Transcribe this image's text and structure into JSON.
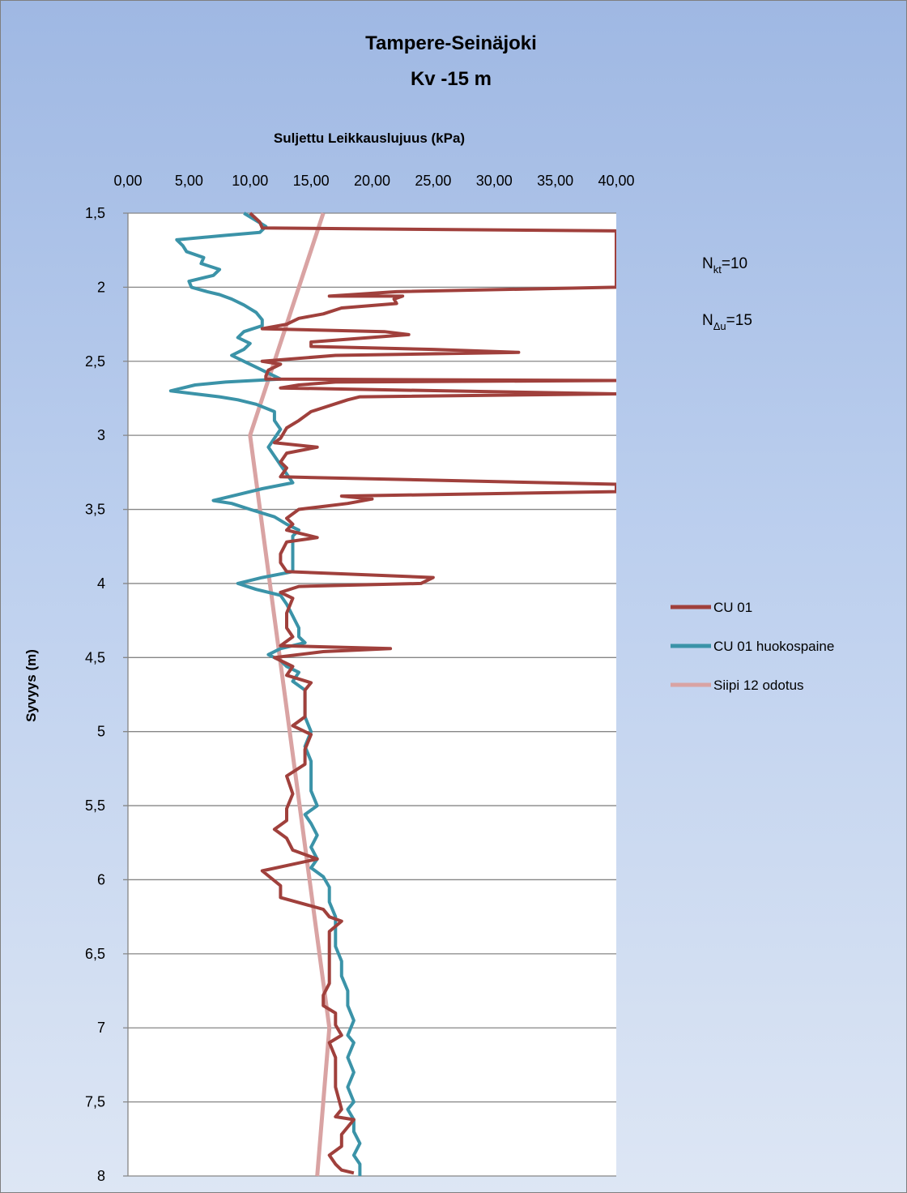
{
  "chart_data": {
    "type": "line",
    "title_lines": [
      "Tampere-Seinäjoki",
      "Kv -15 m"
    ],
    "xlabel": "Suljettu Leikkauslujuus (kPa)",
    "ylabel": "Syvyys (m)",
    "xlim": [
      0,
      40
    ],
    "ylim": [
      1.5,
      8
    ],
    "y_inverted": true,
    "x_axis_position": "top",
    "grid": "horizontal",
    "legend_position": "right",
    "x_ticks": [
      0,
      5,
      10,
      15,
      20,
      25,
      30,
      35,
      40
    ],
    "x_tick_labels": [
      "0,00",
      "5,00",
      "10,00",
      "15,00",
      "20,00",
      "25,00",
      "30,00",
      "35,00",
      "40,00"
    ],
    "y_ticks": [
      1.5,
      2,
      2.5,
      3,
      3.5,
      4,
      4.5,
      5,
      5.5,
      6,
      6.5,
      7,
      7.5,
      8
    ],
    "y_tick_labels": [
      "1,5",
      "2",
      "2,5",
      "3",
      "3,5",
      "4",
      "4,5",
      "5",
      "5,5",
      "6",
      "6,5",
      "7",
      "7,5",
      "8"
    ],
    "annotations": [
      {
        "sym": "N",
        "sub": "kt",
        "rest": "=10"
      },
      {
        "sym": "N",
        "sub": "Δu",
        "rest": "=15"
      }
    ],
    "series": [
      {
        "name": "CU  01",
        "color": "#a0403c",
        "points": [
          [
            10.0,
            1.5
          ],
          [
            10.8,
            1.56
          ],
          [
            11.0,
            1.6
          ],
          [
            40.0,
            1.62
          ],
          [
            40.0,
            2.0
          ],
          [
            22.0,
            2.03
          ],
          [
            16.5,
            2.06
          ],
          [
            22.5,
            2.06
          ],
          [
            21.8,
            2.08
          ],
          [
            22.0,
            2.11
          ],
          [
            17.5,
            2.14
          ],
          [
            16.0,
            2.18
          ],
          [
            14.0,
            2.21
          ],
          [
            13.0,
            2.25
          ],
          [
            11.0,
            2.28
          ],
          [
            21.0,
            2.3
          ],
          [
            23.0,
            2.32
          ],
          [
            15.0,
            2.37
          ],
          [
            15.0,
            2.4
          ],
          [
            25.0,
            2.42
          ],
          [
            32.0,
            2.44
          ],
          [
            17.0,
            2.46
          ],
          [
            11.0,
            2.5
          ],
          [
            12.5,
            2.52
          ],
          [
            11.5,
            2.56
          ],
          [
            11.3,
            2.6
          ],
          [
            11.3,
            2.62
          ],
          [
            40.0,
            2.63
          ],
          [
            17.0,
            2.64
          ],
          [
            14.0,
            2.66
          ],
          [
            12.5,
            2.68
          ],
          [
            40.0,
            2.72
          ],
          [
            19.0,
            2.74
          ],
          [
            18.0,
            2.76
          ],
          [
            15.0,
            2.84
          ],
          [
            14.0,
            2.9
          ],
          [
            13.0,
            2.95
          ],
          [
            12.5,
            3.02
          ],
          [
            12.0,
            3.05
          ],
          [
            15.5,
            3.08
          ],
          [
            13.0,
            3.12
          ],
          [
            12.5,
            3.18
          ],
          [
            13.0,
            3.22
          ],
          [
            12.5,
            3.28
          ],
          [
            40.0,
            3.33
          ],
          [
            40.0,
            3.38
          ],
          [
            17.5,
            3.41
          ],
          [
            20.0,
            3.43
          ],
          [
            18.0,
            3.46
          ],
          [
            16.0,
            3.48
          ],
          [
            14.0,
            3.5
          ],
          [
            13.0,
            3.56
          ],
          [
            13.5,
            3.6
          ],
          [
            13.0,
            3.64
          ],
          [
            15.5,
            3.69
          ],
          [
            13.0,
            3.72
          ],
          [
            12.5,
            3.8
          ],
          [
            12.5,
            3.86
          ],
          [
            13.0,
            3.92
          ],
          [
            25.0,
            3.96
          ],
          [
            24.0,
            4.0
          ],
          [
            14.0,
            4.02
          ],
          [
            12.5,
            4.06
          ],
          [
            13.5,
            4.1
          ],
          [
            13.0,
            4.2
          ],
          [
            13.0,
            4.3
          ],
          [
            13.5,
            4.36
          ],
          [
            12.5,
            4.42
          ],
          [
            21.5,
            4.44
          ],
          [
            16.0,
            4.46
          ],
          [
            12.0,
            4.5
          ],
          [
            13.5,
            4.56
          ],
          [
            13.0,
            4.62
          ],
          [
            15.0,
            4.67
          ],
          [
            14.5,
            4.72
          ],
          [
            14.5,
            4.82
          ],
          [
            14.5,
            4.9
          ],
          [
            13.5,
            4.96
          ],
          [
            15.0,
            5.02
          ],
          [
            14.5,
            5.12
          ],
          [
            14.5,
            5.22
          ],
          [
            13.0,
            5.3
          ],
          [
            13.5,
            5.42
          ],
          [
            13.0,
            5.52
          ],
          [
            13.0,
            5.6
          ],
          [
            12.0,
            5.66
          ],
          [
            13.0,
            5.72
          ],
          [
            13.5,
            5.8
          ],
          [
            15.5,
            5.86
          ],
          [
            11.0,
            5.94
          ],
          [
            12.5,
            6.04
          ],
          [
            12.5,
            6.12
          ],
          [
            16.0,
            6.2
          ],
          [
            16.5,
            6.25
          ],
          [
            17.5,
            6.28
          ],
          [
            16.5,
            6.35
          ],
          [
            16.5,
            6.5
          ],
          [
            16.5,
            6.7
          ],
          [
            16.0,
            6.78
          ],
          [
            16.0,
            6.85
          ],
          [
            17.0,
            6.9
          ],
          [
            17.0,
            6.98
          ],
          [
            17.5,
            7.05
          ],
          [
            16.5,
            7.1
          ],
          [
            17.0,
            7.2
          ],
          [
            17.0,
            7.4
          ],
          [
            17.5,
            7.55
          ],
          [
            17.0,
            7.6
          ],
          [
            18.5,
            7.62
          ],
          [
            17.5,
            7.72
          ],
          [
            17.5,
            7.8
          ],
          [
            16.5,
            7.86
          ],
          [
            17.0,
            7.92
          ],
          [
            17.5,
            7.96
          ],
          [
            18.5,
            7.98
          ]
        ]
      },
      {
        "name": "CU 01 huokospaine",
        "color": "#3b93a8",
        "points": [
          [
            9.5,
            1.5
          ],
          [
            10.5,
            1.55
          ],
          [
            11.3,
            1.59
          ],
          [
            10.8,
            1.63
          ],
          [
            8.0,
            1.65
          ],
          [
            4.0,
            1.68
          ],
          [
            4.5,
            1.72
          ],
          [
            4.8,
            1.76
          ],
          [
            6.2,
            1.8
          ],
          [
            6.0,
            1.84
          ],
          [
            7.5,
            1.88
          ],
          [
            7.0,
            1.92
          ],
          [
            5.0,
            1.96
          ],
          [
            5.2,
            2.0
          ],
          [
            6.5,
            2.03
          ],
          [
            7.5,
            2.05
          ],
          [
            8.5,
            2.08
          ],
          [
            9.5,
            2.12
          ],
          [
            10.5,
            2.17
          ],
          [
            11.0,
            2.22
          ],
          [
            11.0,
            2.26
          ],
          [
            9.5,
            2.3
          ],
          [
            9.0,
            2.34
          ],
          [
            10.0,
            2.38
          ],
          [
            9.5,
            2.42
          ],
          [
            8.5,
            2.46
          ],
          [
            9.5,
            2.5
          ],
          [
            10.5,
            2.54
          ],
          [
            11.5,
            2.58
          ],
          [
            12.5,
            2.62
          ],
          [
            8.0,
            2.64
          ],
          [
            5.5,
            2.66
          ],
          [
            3.5,
            2.7
          ],
          [
            5.5,
            2.72
          ],
          [
            7.5,
            2.74
          ],
          [
            9.0,
            2.76
          ],
          [
            10.5,
            2.79
          ],
          [
            12.0,
            2.84
          ],
          [
            12.0,
            2.9
          ],
          [
            12.5,
            2.96
          ],
          [
            12.0,
            3.02
          ],
          [
            11.5,
            3.08
          ],
          [
            12.0,
            3.14
          ],
          [
            12.5,
            3.2
          ],
          [
            13.0,
            3.26
          ],
          [
            13.5,
            3.32
          ],
          [
            11.0,
            3.36
          ],
          [
            9.0,
            3.4
          ],
          [
            8.0,
            3.42
          ],
          [
            7.0,
            3.44
          ],
          [
            8.5,
            3.46
          ],
          [
            10.0,
            3.5
          ],
          [
            12.0,
            3.55
          ],
          [
            13.0,
            3.6
          ],
          [
            14.0,
            3.64
          ],
          [
            13.5,
            3.68
          ],
          [
            13.5,
            3.74
          ],
          [
            13.5,
            3.8
          ],
          [
            13.5,
            3.86
          ],
          [
            13.5,
            3.92
          ],
          [
            11.0,
            3.96
          ],
          [
            9.0,
            4.0
          ],
          [
            10.5,
            4.04
          ],
          [
            12.5,
            4.08
          ],
          [
            13.0,
            4.14
          ],
          [
            13.5,
            4.22
          ],
          [
            14.0,
            4.3
          ],
          [
            14.0,
            4.36
          ],
          [
            14.5,
            4.4
          ],
          [
            12.5,
            4.44
          ],
          [
            11.5,
            4.48
          ],
          [
            12.5,
            4.52
          ],
          [
            13.0,
            4.56
          ],
          [
            14.0,
            4.6
          ],
          [
            13.5,
            4.66
          ],
          [
            14.5,
            4.72
          ],
          [
            14.5,
            4.8
          ],
          [
            14.5,
            4.9
          ],
          [
            15.0,
            5.0
          ],
          [
            14.5,
            5.1
          ],
          [
            15.0,
            5.2
          ],
          [
            15.0,
            5.3
          ],
          [
            15.0,
            5.4
          ],
          [
            15.5,
            5.5
          ],
          [
            14.5,
            5.56
          ],
          [
            15.0,
            5.62
          ],
          [
            15.5,
            5.7
          ],
          [
            15.0,
            5.78
          ],
          [
            15.5,
            5.86
          ],
          [
            15.0,
            5.92
          ],
          [
            16.0,
            5.98
          ],
          [
            16.5,
            6.05
          ],
          [
            16.5,
            6.15
          ],
          [
            17.0,
            6.25
          ],
          [
            17.0,
            6.35
          ],
          [
            17.0,
            6.45
          ],
          [
            17.5,
            6.55
          ],
          [
            17.5,
            6.65
          ],
          [
            18.0,
            6.75
          ],
          [
            18.0,
            6.85
          ],
          [
            18.5,
            6.95
          ],
          [
            18.0,
            7.05
          ],
          [
            18.5,
            7.1
          ],
          [
            18.0,
            7.2
          ],
          [
            18.5,
            7.3
          ],
          [
            18.0,
            7.4
          ],
          [
            18.5,
            7.5
          ],
          [
            18.0,
            7.55
          ],
          [
            18.5,
            7.62
          ],
          [
            18.5,
            7.7
          ],
          [
            19.0,
            7.78
          ],
          [
            18.5,
            7.86
          ],
          [
            19.0,
            7.92
          ],
          [
            19.0,
            8.0
          ]
        ]
      },
      {
        "name": "Siipi 12 odotus",
        "color": "#d9a3a3",
        "points": [
          [
            16.0,
            1.5
          ],
          [
            10.0,
            3.0
          ],
          [
            16.5,
            7.0
          ],
          [
            15.5,
            8.0
          ]
        ]
      }
    ]
  }
}
